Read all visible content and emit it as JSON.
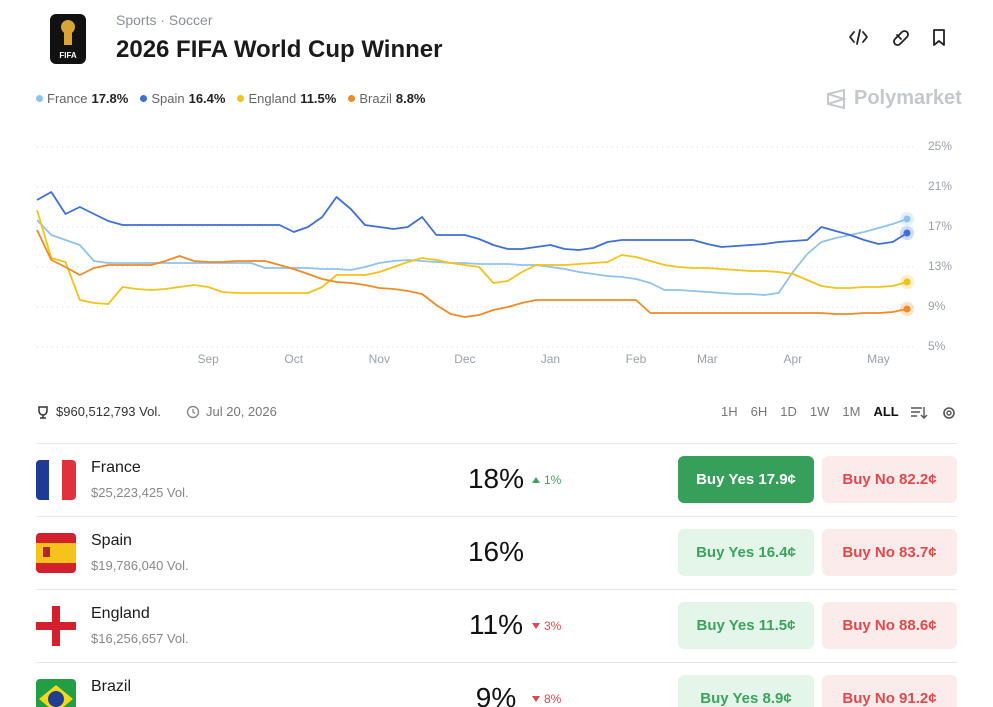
{
  "header": {
    "breadcrumb": [
      "Sports",
      "Soccer"
    ],
    "title": "2026 FIFA World Cup Winner",
    "logo_text": "FIFA",
    "brand": "Polymarket"
  },
  "chart_data": {
    "type": "line",
    "categories": [
      null,
      null,
      null,
      null,
      null,
      null,
      null,
      null,
      null,
      null,
      null,
      null,
      "Sep",
      null,
      null,
      null,
      null,
      null,
      "Oct",
      null,
      null,
      null,
      null,
      null,
      "Nov",
      null,
      null,
      null,
      null,
      null,
      "Dec",
      null,
      null,
      null,
      null,
      null,
      "Jan",
      null,
      null,
      null,
      null,
      null,
      "Feb",
      null,
      null,
      null,
      null,
      "Mar",
      null,
      null,
      null,
      null,
      null,
      "Apr",
      null,
      null,
      null,
      null,
      null,
      "May",
      null,
      null
    ],
    "series": [
      {
        "name": "France",
        "legend_value": "17.8%",
        "color": "#8ec3ee",
        "values": [
          17.7,
          16.2,
          15.7,
          15.2,
          13.6,
          13.4,
          13.4,
          13.4,
          13.4,
          13.4,
          13.4,
          13.4,
          13.4,
          13.4,
          13.4,
          13.4,
          12.9,
          12.9,
          12.9,
          12.9,
          12.8,
          12.8,
          12.7,
          13.0,
          13.4,
          13.6,
          13.7,
          13.6,
          13.5,
          13.4,
          13.4,
          13.3,
          13.3,
          13.3,
          13.2,
          13.2,
          13.0,
          12.8,
          12.5,
          12.3,
          12.1,
          12.0,
          11.8,
          11.4,
          10.7,
          10.7,
          10.6,
          10.5,
          10.4,
          10.3,
          10.3,
          10.2,
          10.4,
          12.5,
          14.3,
          15.5,
          15.9,
          16.2,
          16.5,
          16.9,
          17.3,
          17.8
        ]
      },
      {
        "name": "Spain",
        "legend_value": "16.4%",
        "color": "#3d6fd8",
        "values": [
          19.7,
          20.5,
          18.3,
          19.0,
          18.3,
          17.6,
          17.2,
          17.2,
          17.2,
          17.2,
          17.2,
          17.2,
          17.2,
          17.2,
          17.2,
          17.2,
          17.2,
          17.2,
          16.5,
          17.0,
          18.0,
          20.0,
          18.8,
          17.2,
          17.0,
          16.8,
          17.0,
          18.0,
          16.2,
          16.2,
          16.2,
          15.8,
          15.2,
          14.8,
          14.8,
          15.0,
          15.2,
          14.8,
          14.7,
          14.9,
          15.5,
          15.7,
          15.7,
          15.7,
          15.7,
          15.7,
          15.7,
          15.3,
          15.0,
          15.1,
          15.2,
          15.3,
          15.5,
          15.6,
          15.7,
          17.0,
          16.6,
          16.2,
          15.7,
          15.3,
          15.5,
          16.4
        ]
      },
      {
        "name": "England",
        "legend_value": "11.5%",
        "color": "#f2c318",
        "values": [
          18.7,
          13.9,
          13.5,
          9.7,
          9.4,
          9.3,
          11.0,
          10.8,
          10.7,
          10.8,
          11.0,
          11.2,
          11.0,
          10.5,
          10.4,
          10.4,
          10.4,
          10.4,
          10.4,
          10.4,
          11.0,
          12.2,
          12.2,
          12.2,
          12.5,
          13.0,
          13.5,
          13.9,
          13.7,
          13.4,
          13.2,
          13.0,
          11.4,
          11.6,
          12.5,
          13.2,
          13.2,
          13.2,
          13.3,
          13.4,
          13.5,
          14.2,
          14.0,
          13.6,
          13.2,
          13.0,
          12.9,
          12.9,
          12.8,
          12.7,
          12.6,
          12.6,
          12.5,
          12.3,
          11.7,
          11.1,
          10.9,
          10.9,
          11.0,
          11.0,
          11.1,
          11.5
        ]
      },
      {
        "name": "Brazil",
        "legend_value": "8.8%",
        "color": "#f08a24",
        "values": [
          16.7,
          13.7,
          13.0,
          12.2,
          12.9,
          13.2,
          13.2,
          13.2,
          13.2,
          13.6,
          14.1,
          13.6,
          13.5,
          13.5,
          13.6,
          13.6,
          13.6,
          13.2,
          12.8,
          12.3,
          11.8,
          11.5,
          11.4,
          11.2,
          10.9,
          10.8,
          10.6,
          10.3,
          9.2,
          8.3,
          8.0,
          8.2,
          8.7,
          9.0,
          9.4,
          9.7,
          9.7,
          9.7,
          9.7,
          9.7,
          9.7,
          9.7,
          9.7,
          8.4,
          8.4,
          8.4,
          8.4,
          8.4,
          8.4,
          8.4,
          8.4,
          8.4,
          8.4,
          8.4,
          8.4,
          8.4,
          8.3,
          8.3,
          8.4,
          8.4,
          8.5,
          8.8
        ]
      }
    ],
    "ylim": [
      5,
      25
    ],
    "yticks": [
      {
        "value": 5,
        "label": "5%"
      },
      {
        "value": 9,
        "label": "9%"
      },
      {
        "value": 13,
        "label": "13%"
      },
      {
        "value": 17,
        "label": "17%"
      },
      {
        "value": 21,
        "label": "21%"
      },
      {
        "value": 25,
        "label": "25%"
      }
    ],
    "grid": true
  },
  "stats": {
    "volume": "$960,512,793 Vol.",
    "date": "Jul 20, 2026",
    "timeframes": [
      "1H",
      "6H",
      "1D",
      "1W",
      "1M",
      "ALL"
    ],
    "active": "ALL"
  },
  "outcomes": [
    {
      "name": "France",
      "volume": "$25,223,425 Vol.",
      "chance": "18%",
      "change": "1%",
      "direction": "up",
      "buy_yes": "Buy Yes 17.9¢",
      "buy_no": "Buy No 82.2¢",
      "featured": true
    },
    {
      "name": "Spain",
      "volume": "$19,786,040 Vol.",
      "chance": "16%",
      "buy_yes": "Buy Yes 16.4¢",
      "buy_no": "Buy No 83.7¢"
    },
    {
      "name": "England",
      "volume": "$16,256,657 Vol.",
      "chance": "11%",
      "change": "3%",
      "direction": "down",
      "buy_yes": "Buy Yes 11.5¢",
      "buy_no": "Buy No 88.6¢"
    },
    {
      "name": "Brazil",
      "chance": "9%",
      "change": "8%",
      "direction": "down",
      "buy_yes": "Buy Yes 8.9¢",
      "buy_no": "Buy No 91.2¢"
    }
  ]
}
